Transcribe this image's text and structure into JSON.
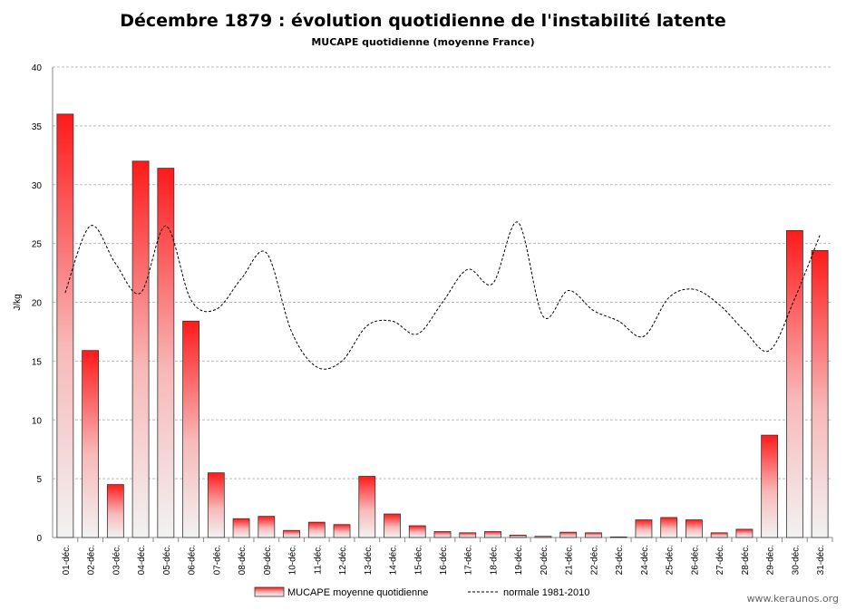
{
  "chart_data": {
    "type": "bar",
    "title": "Décembre 1879 : évolution quotidienne de l'instabilité latente",
    "subtitle": "MUCAPE quotidienne (moyenne France)",
    "xlabel": "",
    "ylabel": "J/kg",
    "ylim": [
      0,
      40
    ],
    "yticks": [
      0,
      5,
      10,
      15,
      20,
      25,
      30,
      35,
      40
    ],
    "grid": true,
    "legend_position": "bottom",
    "categories": [
      "01-déc.",
      "02-déc.",
      "03-déc.",
      "04-déc.",
      "05-déc.",
      "06-déc.",
      "07-déc.",
      "08-déc.",
      "09-déc.",
      "10-déc.",
      "11-déc.",
      "12-déc.",
      "13-déc.",
      "14-déc.",
      "15-déc.",
      "16-déc.",
      "17-déc.",
      "18-déc.",
      "19-déc.",
      "20-déc.",
      "21-déc.",
      "22-déc.",
      "23-déc.",
      "24-déc.",
      "25-déc.",
      "26-déc.",
      "27-déc.",
      "28-déc.",
      "29-déc.",
      "30-déc.",
      "31-déc."
    ],
    "series": [
      {
        "name": "MUCAPE moyenne quotidienne",
        "type": "bar",
        "color": "#ff1a1a",
        "values": [
          36.0,
          15.9,
          4.5,
          32.0,
          31.4,
          18.4,
          5.5,
          1.6,
          1.8,
          0.6,
          1.3,
          1.1,
          5.2,
          2.0,
          1.0,
          0.5,
          0.4,
          0.5,
          0.2,
          0.1,
          0.45,
          0.4,
          0.05,
          1.5,
          1.7,
          1.5,
          0.4,
          0.7,
          8.7,
          26.1,
          24.4
        ]
      },
      {
        "name": "normale 1981-2010",
        "type": "line",
        "color": "#000000",
        "values": [
          20.8,
          26.5,
          23.3,
          20.8,
          26.5,
          20.2,
          19.4,
          22.0,
          24.2,
          17.5,
          14.5,
          15.0,
          18.0,
          18.4,
          17.3,
          20.0,
          22.8,
          21.6,
          26.8,
          18.8,
          21.0,
          19.3,
          18.4,
          17.1,
          20.4,
          21.1,
          19.8,
          17.6,
          15.9,
          20.3,
          25.7
        ]
      }
    ]
  },
  "watermark": "www.keraunos.org"
}
